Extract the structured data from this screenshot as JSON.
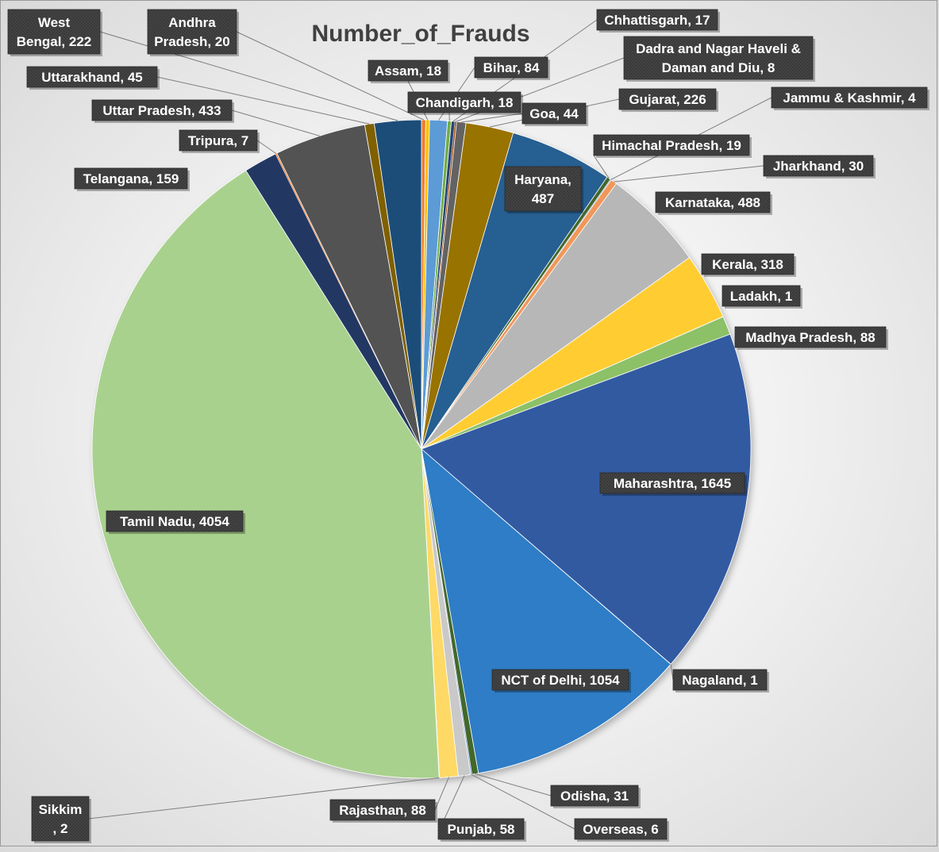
{
  "chart_data": {
    "type": "pie",
    "title": "Number_of_Frauds",
    "categories": [
      "Andhra Pradesh",
      "Assam",
      "Bihar",
      "Chandigarh",
      "Chhattisgarh",
      "Dadra and Nagar Haveli & Daman and Diu",
      "Goa",
      "Gujarat",
      "Haryana",
      "Himachal Pradesh",
      "Jammu & Kashmir",
      "Jharkhand",
      "Karnataka",
      "Kerala",
      "Ladakh",
      "Madhya Pradesh",
      "Maharashtra",
      "Nagaland",
      "NCT of Delhi",
      "Odisha",
      "Overseas",
      "Punjab",
      "Rajasthan",
      "Sikkim",
      "Tamil Nadu",
      "Telangana",
      "Tripura",
      "Uttar Pradesh",
      "Uttarakhand",
      "West Bengal"
    ],
    "values": [
      20,
      18,
      84,
      18,
      17,
      8,
      44,
      226,
      487,
      19,
      4,
      30,
      488,
      318,
      1,
      88,
      1645,
      1,
      1054,
      31,
      6,
      58,
      88,
      2,
      4054,
      159,
      7,
      433,
      45,
      222
    ],
    "colors": [
      "#ED7D31",
      "#FFC000",
      "#5B9BD5",
      "#70AD47",
      "#264478",
      "#9E480E",
      "#636363",
      "#997300",
      "#255E91",
      "#43682B",
      "#698ED0",
      "#F1975A",
      "#B7B7B7",
      "#FFCD33",
      "#8CC168",
      "#8CC168",
      "#335AA1",
      "#5B9BD5",
      "#2F7DC6",
      "#43682B",
      "#8FA9DB",
      "#C9C9C9",
      "#FFD966",
      "#A9D18E",
      "#A9D18E",
      "#203864",
      "#ED7D31",
      "#525252",
      "#806000",
      "#1F4E79"
    ],
    "data_labels": [
      "Andhra\nPradesh, 20",
      "Assam, 18",
      "Bihar, 84",
      "Chandigarh, 18",
      "Chhattisgarh, 17",
      "Dadra and Nagar Haveli &\nDaman and Diu, 8",
      "Goa, 44",
      "Gujarat, 226",
      "Haryana,\n487",
      "Himachal Pradesh, 19",
      "Jammu & Kashmir, 4",
      "Jharkhand, 30",
      "Karnataka, 488",
      "Kerala, 318",
      "Ladakh, 1",
      "Madhya Pradesh, 88",
      "Maharashtra, 1645",
      "Nagaland, 1",
      "NCT of Delhi, 1054",
      "Odisha, 31",
      "Overseas, 6",
      "Punjab, 58",
      "Rajasthan, 88",
      "Sikkim\n, 2",
      "Tamil Nadu, 4054",
      "Telangana, 159",
      "Tripura, 7",
      "Uttar Pradesh, 433",
      "Uttarakhand, 45",
      "West\nBengal, 222"
    ],
    "start_angle_deg": 0,
    "direction": "clockwise",
    "legend": "none"
  }
}
